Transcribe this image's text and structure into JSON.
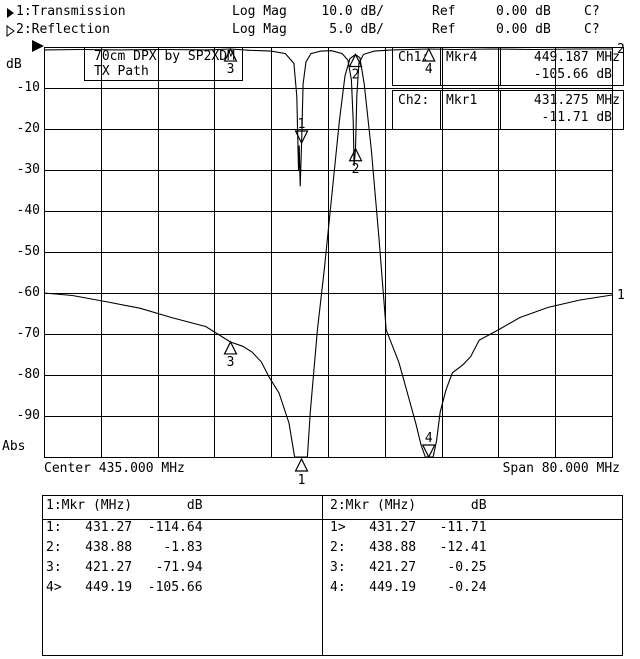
{
  "header": {
    "lines": [
      {
        "indicator": "filled-right-triangle",
        "channel_label": "1:Transmission",
        "format": "Log Mag",
        "scale": "10.0 dB/",
        "ref_label": "Ref",
        "ref_value": "0.00 dB",
        "status": "C?"
      },
      {
        "indicator": "hollow-right-triangle",
        "channel_label": "2:Reflection",
        "format": "Log Mag",
        "scale": "5.0 dB/",
        "ref_label": "Ref",
        "ref_value": "0.00 dB",
        "status": "C?"
      }
    ]
  },
  "chart_data": {
    "type": "line",
    "title": "70cm DPX by SP2XDM",
    "subtitle": "TX Path",
    "ylabel": "dB",
    "y_bottom_label": "Abs",
    "y_tick_labels": [
      "-10",
      "-20",
      "-30",
      "-40",
      "-50",
      "-60",
      "-70",
      "-80",
      "-90"
    ],
    "x_center_label": "Center 435.000 MHz",
    "x_span_label": "Span 80.000 MHz",
    "center_mhz": 435.0,
    "span_mhz": 80.0,
    "freq_min_mhz": 395.0,
    "freq_max_mhz": 475.0,
    "grid_divisions": {
      "x": 10,
      "y": 10
    },
    "series": [
      {
        "trace_id": "1",
        "name": "Transmission",
        "db_per_div": 10,
        "ref_db": 0,
        "points": [
          [
            395,
            -60
          ],
          [
            399,
            -60.6
          ],
          [
            404,
            -62.2
          ],
          [
            408.5,
            -63.7
          ],
          [
            413,
            -66
          ],
          [
            417.8,
            -68.2
          ],
          [
            421.27,
            -71.94
          ],
          [
            423,
            -73
          ],
          [
            424.3,
            -74.4
          ],
          [
            425.6,
            -76.8
          ],
          [
            426.7,
            -80.5
          ],
          [
            428.1,
            -84.4
          ],
          [
            429.5,
            -91.7
          ],
          [
            430.3,
            -100
          ],
          [
            430.9,
            -112
          ],
          [
            431.27,
            -114.64
          ],
          [
            431.8,
            -110
          ],
          [
            432.1,
            -100
          ],
          [
            432.5,
            -89
          ],
          [
            433.5,
            -69
          ],
          [
            434.5,
            -54
          ],
          [
            435.6,
            -35
          ],
          [
            436.6,
            -18
          ],
          [
            437.4,
            -7
          ],
          [
            438.1,
            -2.8
          ],
          [
            438.88,
            -1.83
          ],
          [
            439.5,
            -2.6
          ],
          [
            440.1,
            -9
          ],
          [
            441.1,
            -25
          ],
          [
            442.2,
            -47
          ],
          [
            443.2,
            -69
          ],
          [
            445,
            -77
          ],
          [
            446.2,
            -84.5
          ],
          [
            447.4,
            -92
          ],
          [
            448.1,
            -97
          ],
          [
            448.7,
            -103
          ],
          [
            449.19,
            -105.66
          ],
          [
            449.8,
            -103
          ],
          [
            450.3,
            -96
          ],
          [
            450.8,
            -89
          ],
          [
            451.6,
            -83.7
          ],
          [
            452.5,
            -79.5
          ],
          [
            454,
            -77.5
          ],
          [
            455.1,
            -75.5
          ],
          [
            456.3,
            -71.5
          ],
          [
            459,
            -69
          ],
          [
            462,
            -66
          ],
          [
            466,
            -63.5
          ],
          [
            470.5,
            -61.7
          ],
          [
            475,
            -60.5
          ]
        ]
      },
      {
        "trace_id": "2",
        "name": "Reflection",
        "db_per_div": 5,
        "ref_db": 0,
        "points": [
          [
            395,
            -0.35
          ],
          [
            400,
            -0.3
          ],
          [
            406,
            -0.35
          ],
          [
            412,
            -0.3
          ],
          [
            418,
            -0.35
          ],
          [
            421.27,
            -0.25
          ],
          [
            424,
            -0.4
          ],
          [
            427,
            -0.5
          ],
          [
            429,
            -0.8
          ],
          [
            430.2,
            -2
          ],
          [
            430.6,
            -6
          ],
          [
            430.85,
            -15
          ],
          [
            430.95,
            -12
          ],
          [
            431.08,
            -17
          ],
          [
            431.275,
            -11.71
          ],
          [
            431.5,
            -4.5
          ],
          [
            431.9,
            -1.8
          ],
          [
            432.6,
            -0.8
          ],
          [
            434,
            -0.5
          ],
          [
            435.5,
            -0.45
          ],
          [
            437,
            -0.8
          ],
          [
            437.8,
            -1.6
          ],
          [
            438.3,
            -4
          ],
          [
            438.55,
            -9
          ],
          [
            438.68,
            -14.5
          ],
          [
            438.88,
            -12.41
          ],
          [
            439.05,
            -6
          ],
          [
            439.35,
            -2
          ],
          [
            440,
            -0.9
          ],
          [
            441.5,
            -0.5
          ],
          [
            444,
            -0.35
          ],
          [
            449.19,
            -0.24
          ],
          [
            453,
            -0.3
          ],
          [
            458,
            -0.25
          ],
          [
            464,
            -0.3
          ],
          [
            470,
            -0.25
          ],
          [
            475,
            -0.25
          ]
        ]
      }
    ],
    "markers": {
      "ch1": [
        {
          "n": "1",
          "mhz": 431.27,
          "db": -114.64,
          "active": false
        },
        {
          "n": "2",
          "mhz": 438.88,
          "db": -1.83,
          "active": false
        },
        {
          "n": "3",
          "mhz": 421.27,
          "db": -71.94,
          "active": false
        },
        {
          "n": "4",
          "mhz": 449.19,
          "db": -105.66,
          "active": true
        }
      ],
      "ch2": [
        {
          "n": "1",
          "mhz": 431.275,
          "db": -11.71,
          "active": true
        },
        {
          "n": "2",
          "mhz": 438.88,
          "db": -12.41,
          "active": false
        },
        {
          "n": "3",
          "mhz": 421.27,
          "db": -0.25,
          "active": false
        },
        {
          "n": "4",
          "mhz": 449.19,
          "db": -0.24,
          "active": false
        }
      ]
    }
  },
  "readouts": [
    {
      "channel": "Ch1:",
      "marker": "Mkr4",
      "value": "449.187 MHz",
      "level": "-105.66 dB"
    },
    {
      "channel": "Ch2:",
      "marker": "Mkr1",
      "value": "431.275 MHz",
      "level": "-11.71 dB"
    }
  ],
  "marker_tables": [
    {
      "header": "1:Mkr (MHz)       dB",
      "rows": [
        "1:   431.27  -114.64",
        "2:   438.88    -1.83",
        "3:   421.27   -71.94",
        "4>   449.19  -105.66"
      ]
    },
    {
      "header": "2:Mkr (MHz)       dB",
      "rows": [
        "1>   431.27   -11.71",
        "2:   438.88   -12.41",
        "3:   421.27    -0.25",
        "4:   449.19    -0.24"
      ]
    }
  ]
}
